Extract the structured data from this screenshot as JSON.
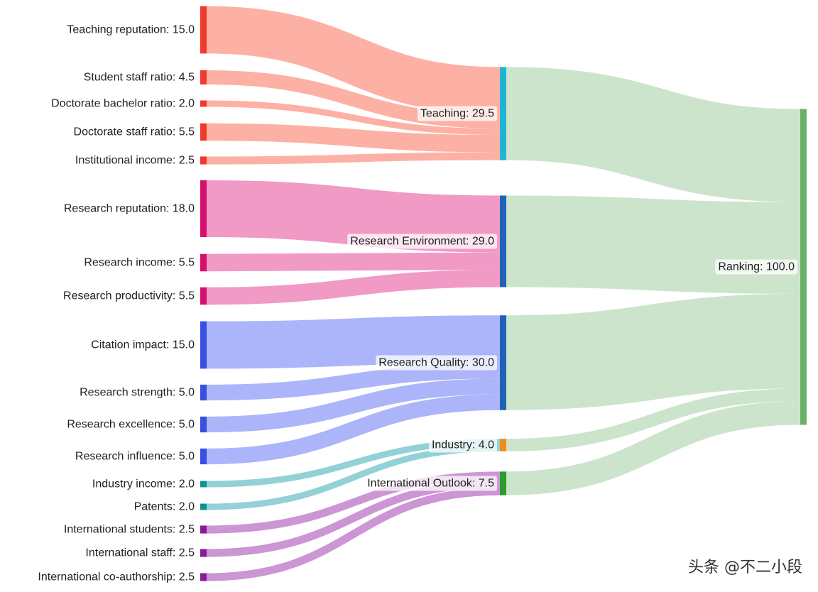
{
  "chart_data": {
    "type": "sankey",
    "nodes": [
      {
        "id": "teaching_reputation",
        "label": "Teaching reputation: 15.0",
        "value": 15.0,
        "color": "#ef3b2c"
      },
      {
        "id": "student_staff_ratio",
        "label": "Student staff ratio: 4.5",
        "value": 4.5,
        "color": "#ef3b2c"
      },
      {
        "id": "doctorate_bachelor_ratio",
        "label": "Doctorate bachelor ratio: 2.0",
        "value": 2.0,
        "color": "#ef3b2c"
      },
      {
        "id": "doctorate_staff_ratio",
        "label": "Doctorate staff ratio: 5.5",
        "value": 5.5,
        "color": "#ef3b2c"
      },
      {
        "id": "institutional_income",
        "label": "Institutional income: 2.5",
        "value": 2.5,
        "color": "#ef3b2c"
      },
      {
        "id": "research_reputation",
        "label": "Research reputation: 18.0",
        "value": 18.0,
        "color": "#d6106e"
      },
      {
        "id": "research_income",
        "label": "Research income: 5.5",
        "value": 5.5,
        "color": "#d6106e"
      },
      {
        "id": "research_productivity",
        "label": "Research productivity: 5.5",
        "value": 5.5,
        "color": "#d6106e"
      },
      {
        "id": "citation_impact",
        "label": "Citation impact: 15.0",
        "value": 15.0,
        "color": "#3a4fe0"
      },
      {
        "id": "research_strength",
        "label": "Research strength: 5.0",
        "value": 5.0,
        "color": "#3a4fe0"
      },
      {
        "id": "research_excellence",
        "label": "Research excellence: 5.0",
        "value": 5.0,
        "color": "#3a4fe0"
      },
      {
        "id": "research_influence",
        "label": "Research influence: 5.0",
        "value": 5.0,
        "color": "#3a4fe0"
      },
      {
        "id": "industry_income",
        "label": "Industry income: 2.0",
        "value": 2.0,
        "color": "#138f8f"
      },
      {
        "id": "patents",
        "label": "Patents: 2.0",
        "value": 2.0,
        "color": "#138f8f"
      },
      {
        "id": "international_students",
        "label": "International students: 2.5",
        "value": 2.5,
        "color": "#8b1a99"
      },
      {
        "id": "international_staff",
        "label": "International staff: 2.5",
        "value": 2.5,
        "color": "#8b1a99"
      },
      {
        "id": "international_coauthorship",
        "label": "International co-authorship: 2.5",
        "value": 2.5,
        "color": "#8b1a99"
      },
      {
        "id": "teaching",
        "label": "Teaching: 29.5",
        "value": 29.5,
        "color": "#20b4d4"
      },
      {
        "id": "research_environment",
        "label": "Research Environment: 29.0",
        "value": 29.0,
        "color": "#2062b8"
      },
      {
        "id": "research_quality",
        "label": "Research Quality: 30.0",
        "value": 30.0,
        "color": "#2062b8"
      },
      {
        "id": "industry",
        "label": "Industry: 4.0",
        "value": 4.0,
        "color": "#f28c1e"
      },
      {
        "id": "international_outlook",
        "label": "International Outlook: 7.5",
        "value": 7.5,
        "color": "#2a9d2a"
      },
      {
        "id": "ranking",
        "label": "Ranking: 100.0",
        "value": 100.0,
        "color": "#6ab06a"
      }
    ],
    "links": [
      {
        "source": "teaching_reputation",
        "target": "teaching",
        "value": 15.0,
        "color": "#fca99a"
      },
      {
        "source": "student_staff_ratio",
        "target": "teaching",
        "value": 4.5,
        "color": "#fca99a"
      },
      {
        "source": "doctorate_bachelor_ratio",
        "target": "teaching",
        "value": 2.0,
        "color": "#fca99a"
      },
      {
        "source": "doctorate_staff_ratio",
        "target": "teaching",
        "value": 5.5,
        "color": "#fca99a"
      },
      {
        "source": "institutional_income",
        "target": "teaching",
        "value": 2.5,
        "color": "#fca99a"
      },
      {
        "source": "research_reputation",
        "target": "research_environment",
        "value": 18.0,
        "color": "#ee8fbf"
      },
      {
        "source": "research_income",
        "target": "research_environment",
        "value": 5.5,
        "color": "#ee8fbf"
      },
      {
        "source": "research_productivity",
        "target": "research_environment",
        "value": 5.5,
        "color": "#ee8fbf"
      },
      {
        "source": "citation_impact",
        "target": "research_quality",
        "value": 15.0,
        "color": "#a3acfa"
      },
      {
        "source": "research_strength",
        "target": "research_quality",
        "value": 5.0,
        "color": "#a3acfa"
      },
      {
        "source": "research_excellence",
        "target": "research_quality",
        "value": 5.0,
        "color": "#a3acfa"
      },
      {
        "source": "research_influence",
        "target": "research_quality",
        "value": 5.0,
        "color": "#a3acfa"
      },
      {
        "source": "industry_income",
        "target": "industry",
        "value": 2.0,
        "color": "#86ccd0"
      },
      {
        "source": "patents",
        "target": "industry",
        "value": 2.0,
        "color": "#86ccd0"
      },
      {
        "source": "international_students",
        "target": "international_outlook",
        "value": 2.5,
        "color": "#c689cf"
      },
      {
        "source": "international_staff",
        "target": "international_outlook",
        "value": 2.5,
        "color": "#c689cf"
      },
      {
        "source": "international_coauthorship",
        "target": "international_outlook",
        "value": 2.5,
        "color": "#c689cf"
      },
      {
        "source": "teaching",
        "target": "ranking",
        "value": 29.5,
        "color": "#c6e1c6"
      },
      {
        "source": "research_environment",
        "target": "ranking",
        "value": 29.0,
        "color": "#c6e1c6"
      },
      {
        "source": "research_quality",
        "target": "ranking",
        "value": 30.0,
        "color": "#c6e1c6"
      },
      {
        "source": "industry",
        "target": "ranking",
        "value": 4.0,
        "color": "#c6e1c6"
      },
      {
        "source": "international_outlook",
        "target": "ranking",
        "value": 7.5,
        "color": "#c6e1c6"
      }
    ]
  },
  "watermark": "头条 @不二小段"
}
